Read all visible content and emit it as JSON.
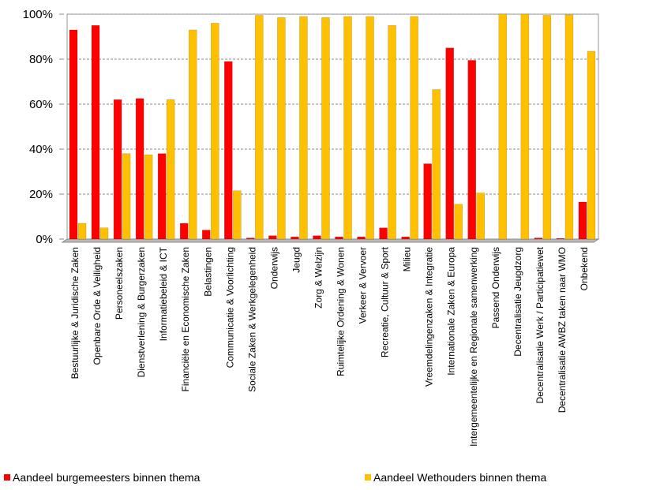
{
  "chart_data": {
    "type": "bar",
    "categories": [
      "Bestuurlijke & Juridische Zaken",
      "Openbare Orde & Veiligheid",
      "Personeelszaken",
      "Dienstverlening & Burgerzaken",
      "Informatiebeleid & ICT",
      "Financiële en Economische Zaken",
      "Belastingen",
      "Communicatie & Voorlichting",
      "Sociale Zaken & Werkgelegenheid",
      "Onderwijs",
      "Jeugd",
      "Zorg & Welzijn",
      "Ruimtelijke Ordening & Wonen",
      "Verkeer & Vervoer",
      "Recreatie, Cultuur & Sport",
      "Milieu",
      "Vreemdelingenzaken & Integratie",
      "Internationale Zaken & Europa",
      "Intergemeentelijke en Regionale samenwerking",
      "Passend Onderwijs",
      "Decentralisatie Jeugdzorg",
      "Decentralisatie Werk / Participatiewet",
      "Decentralisatie AWBZ taken naar WMO",
      "Onbekend"
    ],
    "series": [
      {
        "name": "Aandeel burgemeesters binnen thema",
        "color": "#ff0000",
        "values": [
          93,
          95,
          62,
          62.5,
          38,
          7,
          4,
          79,
          0.5,
          1.5,
          1,
          1.5,
          1,
          1,
          5,
          1,
          33.5,
          85,
          79.5,
          0,
          0,
          0.5,
          0.3,
          16.5
        ]
      },
      {
        "name": "Aandeel Wethouders binnen thema",
        "color": "#ffc000",
        "values": [
          7,
          5,
          38,
          37.5,
          62,
          93,
          96,
          21.5,
          99.5,
          98.5,
          99,
          98.5,
          99,
          99,
          95,
          99,
          66.5,
          15.5,
          20.5,
          100,
          100,
          99.5,
          99.7,
          83.5
        ]
      }
    ],
    "ylim": [
      0,
      100
    ],
    "yticks": [
      {
        "value": 0,
        "label": "0%"
      },
      {
        "value": 20,
        "label": "20%"
      },
      {
        "value": 40,
        "label": "40%"
      },
      {
        "value": 60,
        "label": "60%"
      },
      {
        "value": 80,
        "label": "80%"
      },
      {
        "value": 100,
        "label": "100%"
      }
    ],
    "grid": true,
    "legend": "bottom"
  }
}
